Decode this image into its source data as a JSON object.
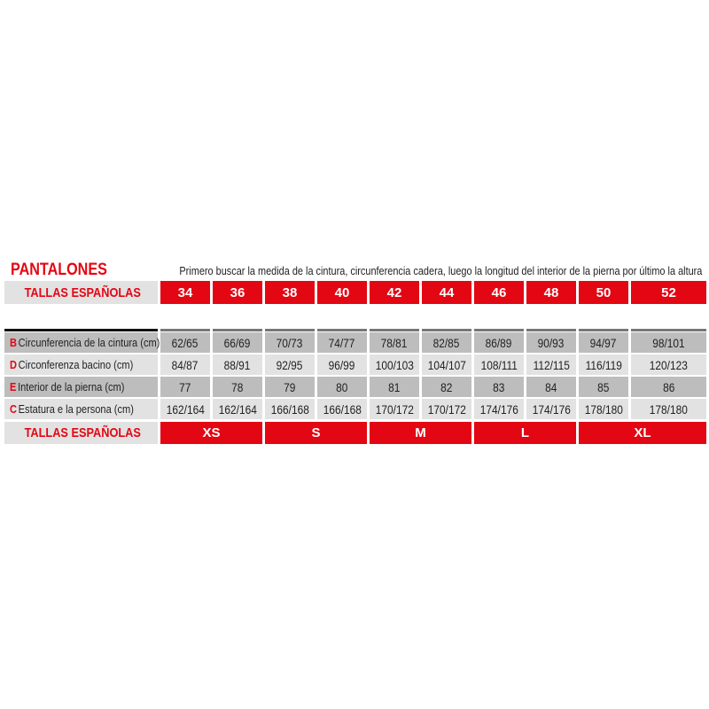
{
  "title": "PANTALONES",
  "note": "Primero buscar la medida de la cintura, circunferencia cadera, luego la longitud del interior de la pierna por último la altura",
  "header": {
    "label": "TALLAS ESPAÑOLAS",
    "sizes": [
      "34",
      "36",
      "38",
      "40",
      "42",
      "44",
      "46",
      "48",
      "50",
      "52"
    ]
  },
  "rows": [
    {
      "key": "B",
      "label": "Circunferencia de la cintura (cm)",
      "values": [
        "62/65",
        "66/69",
        "70/73",
        "74/77",
        "78/81",
        "82/85",
        "86/89",
        "90/93",
        "94/97",
        "98/101"
      ]
    },
    {
      "key": "D",
      "label": "Circonferenza bacino (cm)",
      "values": [
        "84/87",
        "88/91",
        "92/95",
        "96/99",
        "100/103",
        "104/107",
        "108/111",
        "112/115",
        "116/119",
        "120/123"
      ]
    },
    {
      "key": "E",
      "label": "Interior de la pierna (cm)",
      "values": [
        "77",
        "78",
        "79",
        "80",
        "81",
        "82",
        "83",
        "84",
        "85",
        "86"
      ]
    },
    {
      "key": "C",
      "label": "Estatura e la persona (cm)",
      "values": [
        "162/164",
        "162/164",
        "166/168",
        "166/168",
        "170/172",
        "170/172",
        "174/176",
        "174/176",
        "178/180",
        "178/180"
      ]
    }
  ],
  "footer": {
    "label": "TALLAS ESPAÑOLAS",
    "sizes": [
      "XS",
      "S",
      "M",
      "L",
      "XL"
    ]
  },
  "colors": {
    "accent": "#e30613",
    "row_dark": "#bdbdbd",
    "row_light": "#e2e2e2"
  }
}
